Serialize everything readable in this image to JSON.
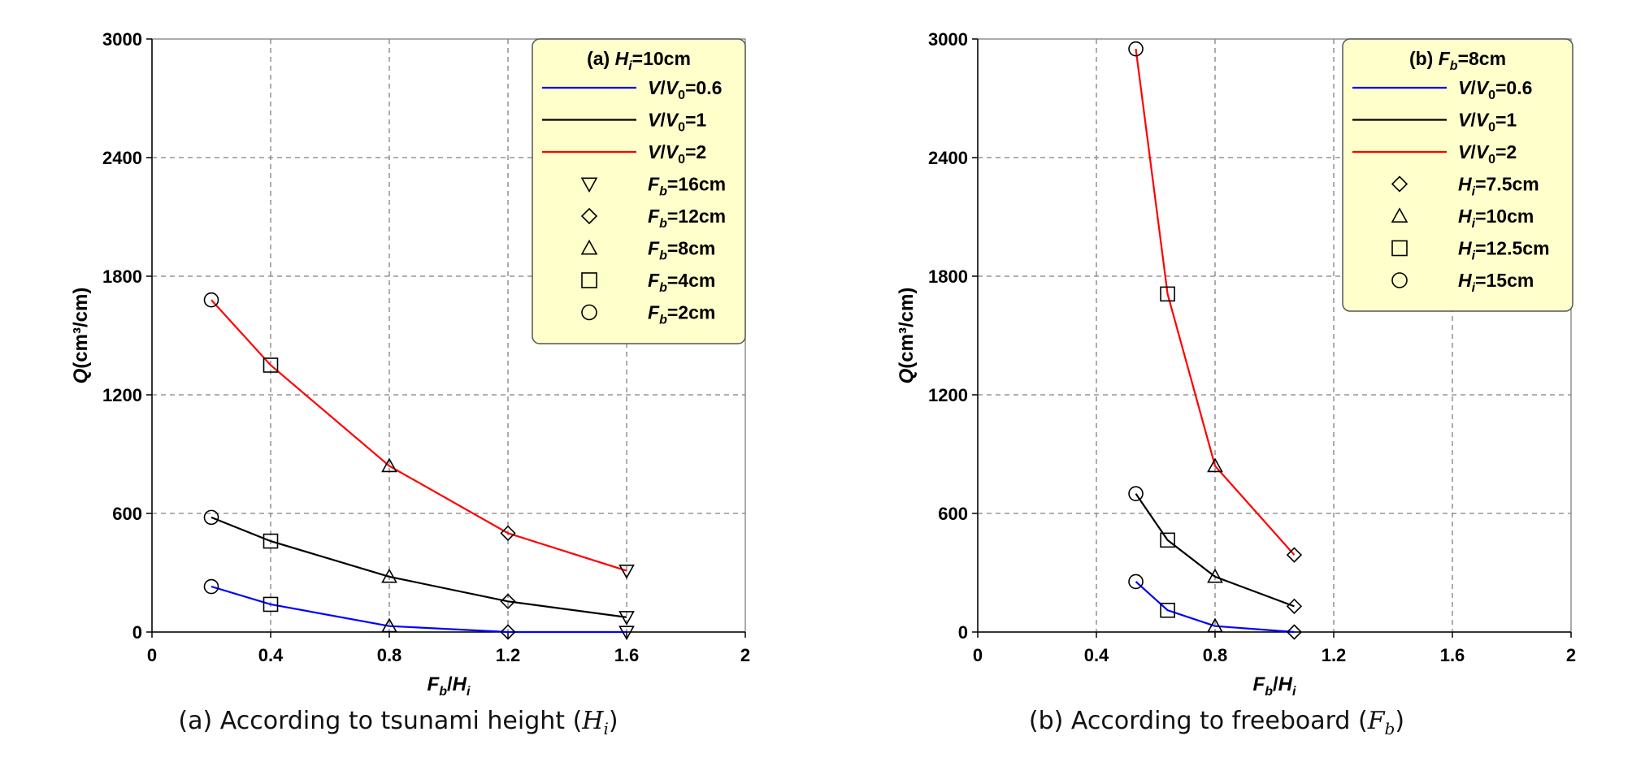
{
  "chart_data": [
    {
      "type": "line",
      "title": "",
      "xlabel": "Fb/Hi",
      "ylabel": "Q(cm³/cm)",
      "xlim": [
        0,
        2
      ],
      "ylim": [
        0,
        3000
      ],
      "xticks": [
        "0",
        "0.4",
        "0.8",
        "1.2",
        "1.6",
        "2"
      ],
      "yticks": [
        "0",
        "600",
        "1200",
        "1800",
        "2400",
        "3000"
      ],
      "grid": true,
      "legend_position": "top-right",
      "legend_title": "(a) Hi=10cm",
      "caption": "(a) According to tsunami height (Hi)",
      "series": [
        {
          "name": "V/V0=0.6",
          "color": "#0000ff",
          "x": [
            0.2,
            0.4,
            0.8,
            1.2,
            1.6
          ],
          "y": [
            230,
            140,
            30,
            0,
            0
          ]
        },
        {
          "name": "V/V0=1",
          "color": "#000000",
          "x": [
            0.2,
            0.4,
            0.8,
            1.2,
            1.6
          ],
          "y": [
            580,
            460,
            280,
            155,
            75
          ]
        },
        {
          "name": "V/V0=2",
          "color": "#ff0000",
          "x": [
            0.2,
            0.4,
            0.8,
            1.2,
            1.6
          ],
          "y": [
            1680,
            1350,
            840,
            500,
            310
          ]
        }
      ],
      "marker_series": [
        {
          "name": "Fb=16cm",
          "marker": "triangle-down",
          "x": 1.6
        },
        {
          "name": "Fb=12cm",
          "marker": "diamond",
          "x": 1.2
        },
        {
          "name": "Fb=8cm",
          "marker": "triangle-up",
          "x": 0.8
        },
        {
          "name": "Fb=4cm",
          "marker": "square",
          "x": 0.4
        },
        {
          "name": "Fb=2cm",
          "marker": "circle",
          "x": 0.2
        }
      ]
    },
    {
      "type": "line",
      "title": "",
      "xlabel": "Fb/Hi",
      "ylabel": "Q(cm³/cm)",
      "xlim": [
        0,
        2
      ],
      "ylim": [
        0,
        3000
      ],
      "xticks": [
        "0",
        "0.4",
        "0.8",
        "1.2",
        "1.6",
        "2"
      ],
      "yticks": [
        "0",
        "600",
        "1200",
        "1800",
        "2400",
        "3000"
      ],
      "grid": true,
      "legend_position": "top-right",
      "legend_title": "(b) Fb=8cm",
      "caption": "(b) According to freeboard (Fb)",
      "series": [
        {
          "name": "V/V0=0.6",
          "color": "#0000ff",
          "x": [
            0.533,
            0.64,
            0.8,
            1.067
          ],
          "y": [
            255,
            110,
            30,
            0
          ]
        },
        {
          "name": "V/V0=1",
          "color": "#000000",
          "x": [
            0.533,
            0.64,
            0.8,
            1.067
          ],
          "y": [
            700,
            465,
            280,
            130
          ]
        },
        {
          "name": "V/V0=2",
          "color": "#ff0000",
          "x": [
            0.533,
            0.64,
            0.8,
            1.067
          ],
          "y": [
            2950,
            1710,
            840,
            390
          ]
        }
      ],
      "marker_series": [
        {
          "name": "Hi=7.5cm",
          "marker": "diamond",
          "x": 1.067
        },
        {
          "name": "Hi=10cm",
          "marker": "triangle-up",
          "x": 0.8
        },
        {
          "name": "Hi=12.5cm",
          "marker": "square",
          "x": 0.64
        },
        {
          "name": "Hi=15cm",
          "marker": "circle",
          "x": 0.533
        }
      ]
    }
  ]
}
